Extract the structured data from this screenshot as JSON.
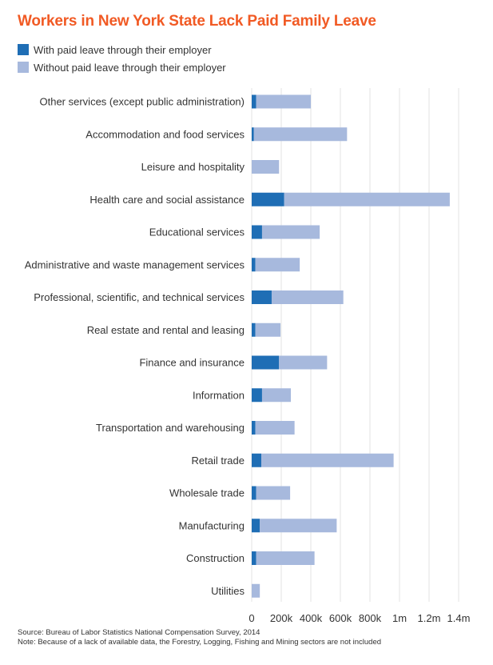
{
  "title": "Workers in New York State Lack Paid Family Leave",
  "colors": {
    "title": "#f15a24",
    "with_paid": "#1f6eb5",
    "without_paid": "#a7b9dd",
    "grid": "#e3e3e3"
  },
  "legend": [
    {
      "label": "With paid leave through their employer",
      "color": "#1f6eb5"
    },
    {
      "label": "Without paid leave through their employer",
      "color": "#a7b9dd"
    }
  ],
  "chart_data": {
    "type": "bar",
    "orientation": "horizontal",
    "stacked": true,
    "categories": [
      "Other services (except public administration)",
      "Accommodation and food services",
      "Leisure and hospitality",
      "Health care and social assistance",
      "Educational services",
      "Administrative and waste management services",
      "Professional, scientific, and technical services",
      "Real estate and rental and leasing",
      "Finance and insurance",
      "Information",
      "Transportation and warehousing",
      "Retail trade",
      "Wholesale trade",
      "Manufacturing",
      "Construction",
      "Utilities"
    ],
    "series": [
      {
        "name": "With paid leave through their employer",
        "values": [
          30000,
          15000,
          0,
          220000,
          70000,
          25000,
          135000,
          25000,
          185000,
          70000,
          25000,
          65000,
          30000,
          55000,
          30000,
          0
        ]
      },
      {
        "name": "Without paid leave through their employer",
        "values": [
          370000,
          630000,
          185000,
          1120000,
          390000,
          300000,
          485000,
          170000,
          325000,
          195000,
          265000,
          895000,
          230000,
          520000,
          395000,
          55000
        ]
      }
    ],
    "xlim": [
      0,
      1400000
    ],
    "x_ticks": [
      0,
      200000,
      400000,
      600000,
      800000,
      1000000,
      1200000,
      1400000
    ],
    "x_tick_labels": [
      "0",
      "200k",
      "400k",
      "600k",
      "800k",
      "1m",
      "1.2m",
      "1.4m"
    ],
    "grid": "vertical"
  },
  "source_lines": [
    "Source:  Bureau of Labor Statistics National Compensation Survey, 2014",
    "Note: Because of a lack of available data, the Forestry, Logging, Fishing and Mining sectors are not included"
  ]
}
